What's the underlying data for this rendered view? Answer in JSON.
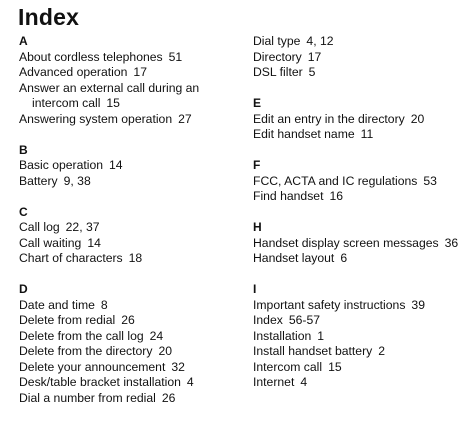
{
  "title": "Index",
  "columns": [
    {
      "sections": [
        {
          "letter": "A",
          "entries": [
            {
              "term": "About cordless telephones",
              "pages": "51"
            },
            {
              "term": "Advanced operation",
              "pages": "17"
            },
            {
              "term": "Answer an external call during an intercom call",
              "pages": "15"
            },
            {
              "term": "Answering system operation",
              "pages": "27"
            }
          ]
        },
        {
          "letter": "B",
          "entries": [
            {
              "term": "Basic operation",
              "pages": "14"
            },
            {
              "term": "Battery",
              "pages": "9, 38"
            }
          ]
        },
        {
          "letter": "C",
          "entries": [
            {
              "term": "Call log",
              "pages": "22, 37"
            },
            {
              "term": "Call waiting",
              "pages": "14"
            },
            {
              "term": "Chart of characters",
              "pages": "18"
            }
          ]
        },
        {
          "letter": "D",
          "entries": [
            {
              "term": "Date and time",
              "pages": "8"
            },
            {
              "term": "Delete from redial",
              "pages": "26"
            },
            {
              "term": "Delete from the call log",
              "pages": "24"
            },
            {
              "term": "Delete from the directory",
              "pages": "20"
            },
            {
              "term": "Delete your announcement",
              "pages": "32"
            },
            {
              "term": "Desk/table bracket installation",
              "pages": "4"
            },
            {
              "term": "Dial a number from redial",
              "pages": "26"
            }
          ]
        }
      ]
    },
    {
      "sections": [
        {
          "letter": "",
          "entries": [
            {
              "term": "Dial type",
              "pages": "4, 12"
            },
            {
              "term": "Directory",
              "pages": "17"
            },
            {
              "term": "DSL filter",
              "pages": "5"
            }
          ]
        },
        {
          "letter": "E",
          "entries": [
            {
              "term": "Edit an entry in the directory",
              "pages": "20"
            },
            {
              "term": "Edit handset name",
              "pages": "11"
            }
          ]
        },
        {
          "letter": "F",
          "entries": [
            {
              "term": "FCC, ACTA and IC regulations",
              "pages": "53"
            },
            {
              "term": "Find handset",
              "pages": "16"
            }
          ]
        },
        {
          "letter": "H",
          "entries": [
            {
              "term": "Handset display screen messages",
              "pages": "36"
            },
            {
              "term": "Handset layout",
              "pages": "6"
            }
          ]
        },
        {
          "letter": "I",
          "entries": [
            {
              "term": "Important safety instructions",
              "pages": "39"
            },
            {
              "term": "Index",
              "pages": "56-57"
            },
            {
              "term": "Installation",
              "pages": "1"
            },
            {
              "term": "Install handset battery",
              "pages": "2"
            },
            {
              "term": "Intercom call",
              "pages": "15"
            },
            {
              "term": "Internet",
              "pages": "4"
            }
          ]
        }
      ]
    }
  ]
}
